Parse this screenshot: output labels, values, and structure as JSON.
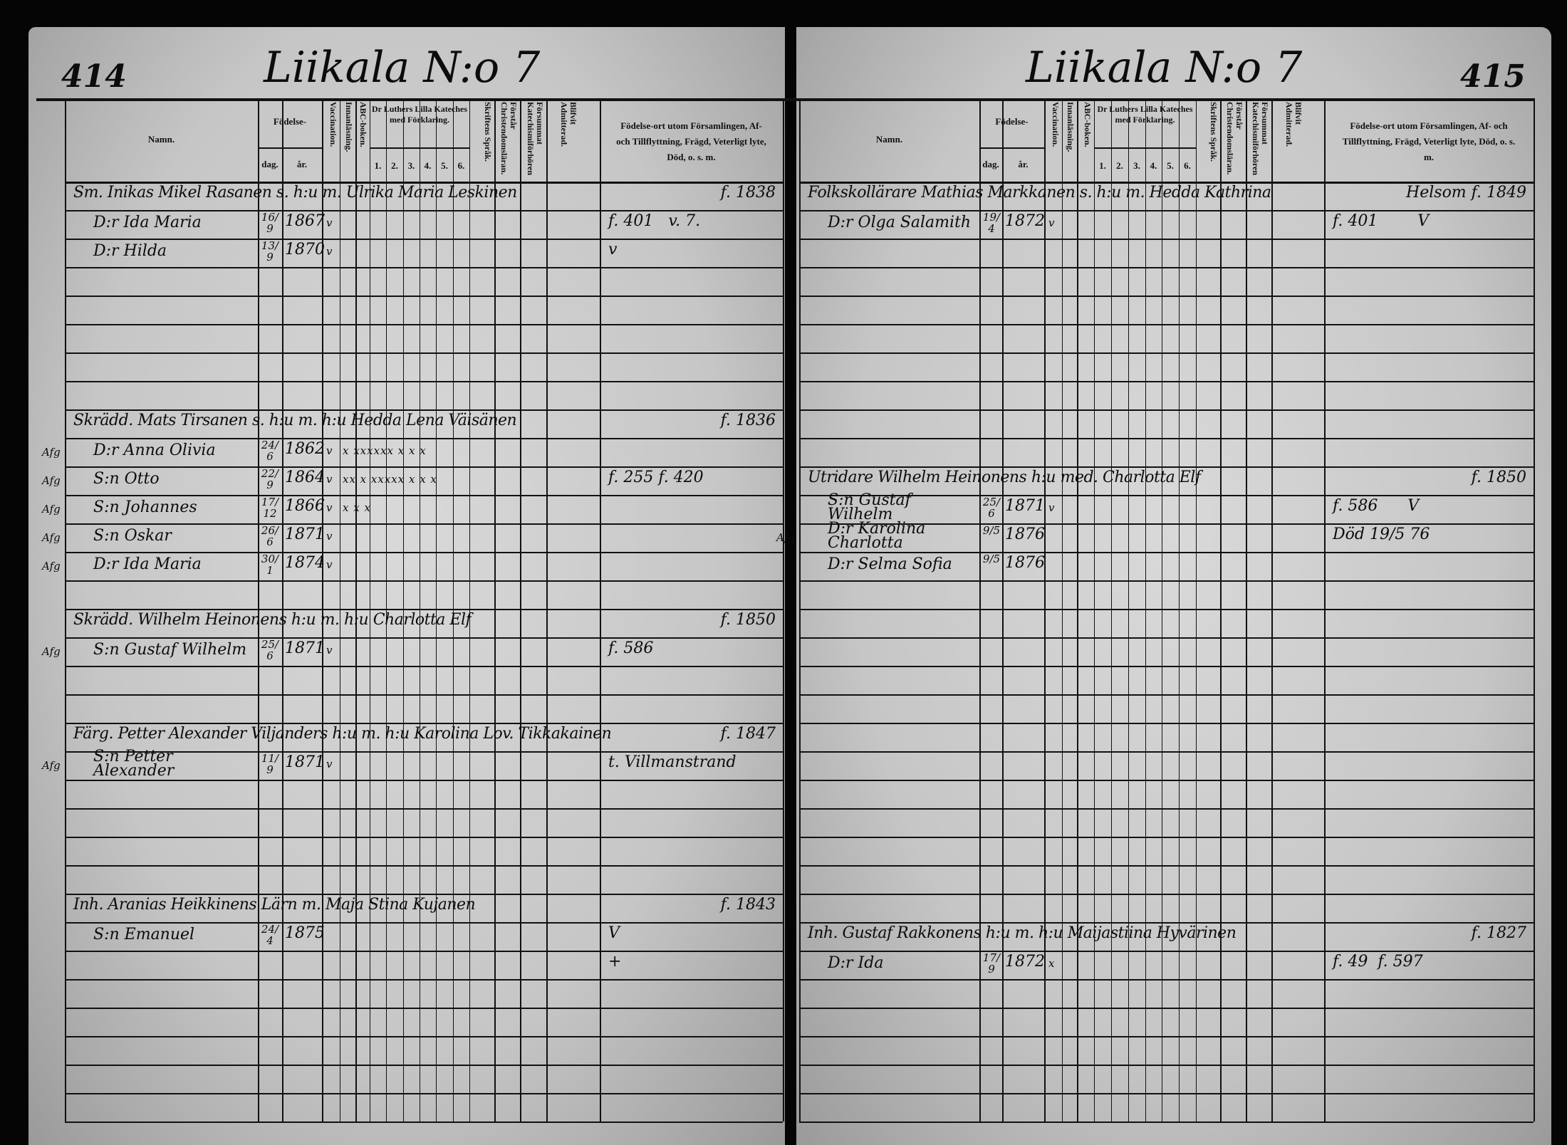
{
  "left_page": {
    "title": "Liikala N:o 7",
    "page_number": "414",
    "headers": {
      "name": "Namn.",
      "birth": "Födelse-",
      "day": "dag.",
      "year": "år.",
      "vaccination": "Vaccination.",
      "reading": "Innanläsning.",
      "abc": "ABC-boken.",
      "catechism": "Dr Luthers Lilla Kateches med Förklaring.",
      "catechism_parts": [
        "1.",
        "2.",
        "3.",
        "4.",
        "5.",
        "6."
      ],
      "scripture": "Skriftens Språk.",
      "understands": "Förstår Christendomsläran.",
      "missed": "Försummat Katechismiförhören",
      "admitted": "Blifvit Admitterad.",
      "remarks": "Födelse-ort utom Församlingen, Af- och Tillflyttning, Frägd, Veterligt lyte, Död, o. s. m."
    },
    "rows": [
      {
        "line": "Sm. Inikas Mikel Rasanen s. h:u m. Ulrika Maria Leskinen",
        "remarks": "f. 1838"
      },
      {
        "name": "D:r Ida Maria",
        "day": "16/9",
        "year": "1867",
        "vacc": "v",
        "remarks": "f. 401   v. 7."
      },
      {
        "name": "D:r Hilda",
        "day": "13/9",
        "year": "1870",
        "vacc": "v",
        "remarks": "v"
      },
      {},
      {},
      {},
      {},
      {},
      {
        "line": "Skrädd. Mats Tirsanen s. h:u m. h:u Hedda Lena Väisänen",
        "remarks": "f. 1836"
      },
      {
        "margin": "Afg",
        "name": "D:r Anna Olivia",
        "day": "24/6",
        "year": "1862",
        "vacc": "v",
        "marks": "x xxxxxx x x x"
      },
      {
        "margin": "Afg",
        "name": "S:n Otto",
        "day": "22/9",
        "year": "1864",
        "vacc": "v",
        "marks": "xx x xxxxx x x x",
        "remarks": "f. 255 f. 420"
      },
      {
        "margin": "Afg",
        "name": "S:n Johannes",
        "day": "17/12",
        "year": "1866",
        "vacc": "v",
        "marks": "x x x"
      },
      {
        "margin": "Afg",
        "name": "S:n Oskar",
        "day": "26/6",
        "year": "1871",
        "vacc": "v"
      },
      {
        "margin": "Afg",
        "name": "D:r Ida Maria",
        "day": "30/1",
        "year": "1874",
        "vacc": "v"
      },
      {},
      {
        "line": "Skrädd. Wilhelm Heinonens h:u m. h:u Charlotta Elf",
        "remarks": "f. 1850"
      },
      {
        "margin": "Afg",
        "name": "S:n Gustaf Wilhelm",
        "day": "25/6",
        "year": "1871",
        "vacc": "v",
        "remarks": "f. 586"
      },
      {},
      {},
      {
        "line": "Färg. Petter Alexander Viljanders h:u m. h:u Karolina Lov. Tikkakainen",
        "remarks": "f. 1847"
      },
      {
        "margin": "Afg",
        "name": "S:n Petter Alexander",
        "day": "11/9",
        "year": "1871",
        "vacc": "v",
        "remarks": "t. Villmanstrand"
      },
      {},
      {},
      {},
      {},
      {
        "line": "Inh. Aranias Heikkinens Lärn m. Maja Stina Kujanen",
        "remarks": "f. 1843"
      },
      {
        "name": "S:n Emanuel",
        "day": "24/4",
        "year": "1875",
        "remarks": "V"
      },
      {
        "remarks": "+"
      },
      {},
      {},
      {},
      {},
      {}
    ]
  },
  "right_page": {
    "title": "Liikala N:o 7",
    "page_number": "415",
    "headers": {
      "name": "Namn.",
      "birth": "Födelse-",
      "day": "dag.",
      "year": "år.",
      "vaccination": "Vaccination.",
      "reading": "Innanläsning.",
      "abc": "ABC-boken.",
      "catechism": "Dr Luthers Lilla Kateches med Förklaring.",
      "catechism_parts": [
        "1.",
        "2.",
        "3.",
        "4.",
        "5.",
        "6."
      ],
      "scripture": "Skriftens Språk.",
      "understands": "Förstår Christendomsläran.",
      "missed": "Försummat Katechismiförhören",
      "admitted": "Blifvit Admitterad.",
      "remarks": "Födelse-ort utom Församlingen, Af- och Tillflyttning, Frägd, Veterligt lyte, Död, o. s. m."
    },
    "rows": [
      {
        "line": "Folkskollärare Mathias Markkanen s. h:u m. Hedda Kathrina",
        "remarks": "Helsom f. 1849"
      },
      {
        "name": "D:r Olga Salamith",
        "day": "19/4",
        "year": "1872",
        "vacc": "v",
        "remarks": "f. 401        V"
      },
      {},
      {},
      {},
      {},
      {},
      {},
      {},
      {},
      {
        "line": "Utridare Wilhelm Heinonens h:u med. Charlotta Elf",
        "remarks": "f. 1850"
      },
      {
        "name": "S:n Gustaf Wilhelm",
        "day": "25/6",
        "year": "1871",
        "vacc": "v",
        "remarks": "f. 586      V"
      },
      {
        "margin": "Afg",
        "name": "D:r Karolina Charlotta",
        "day": "9/5",
        "year": "1876",
        "remarks": "Död 19/5 76"
      },
      {
        "name": "D:r Selma Sofia",
        "day": "9/5",
        "year": "1876"
      },
      {},
      {},
      {},
      {},
      {},
      {},
      {},
      {},
      {},
      {},
      {},
      {},
      {
        "line": "Inh. Gustaf Rakkonens h:u m. h:u Maijastiina Hyvärinen",
        "remarks": "f. 1827"
      },
      {
        "name": "D:r Ida",
        "day": "17/9",
        "year": "1872",
        "vacc": "x",
        "remarks": "f. 49  f. 597"
      },
      {},
      {},
      {},
      {},
      {}
    ]
  }
}
